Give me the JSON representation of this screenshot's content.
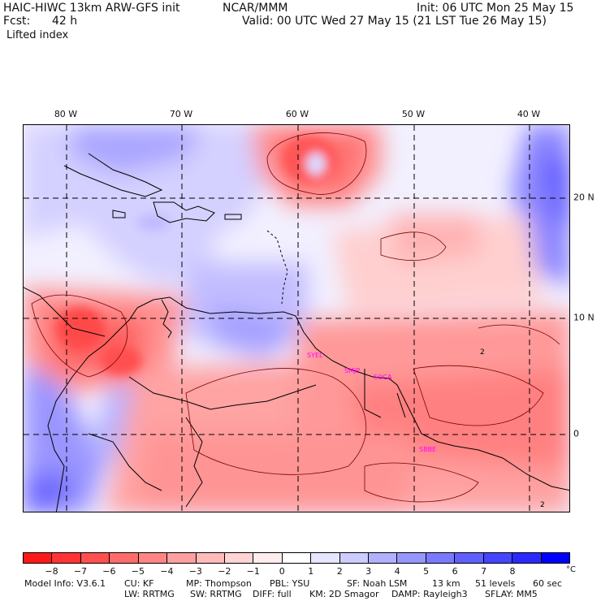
{
  "header": {
    "model": "HAIC-HIWC 13km ARW-GFS init",
    "org": "NCAR/MMM",
    "init": "Init: 06 UTC Mon 25 May 15",
    "fcst_label": "Fcst:",
    "fcst_value": "42 h",
    "valid": "Valid: 00 UTC Wed 27 May 15 (21 LST Tue 26 May 15)",
    "field": "Lifted index"
  },
  "map": {
    "lon_labels": [
      "80 W",
      "70 W",
      "60 W",
      "50 W",
      "40 W"
    ],
    "lat_labels": [
      "20 N",
      "10 N",
      "0"
    ],
    "contour_labels": [
      "2",
      "2"
    ],
    "stations": [
      "SYEL",
      "SMJP",
      "SOCA",
      "SBBE"
    ],
    "colors": {
      "strong_unstable": "#ff0000",
      "neutral": "#ffffff",
      "strong_stable": "#0000ff"
    }
  },
  "colorbar": {
    "colors": [
      "#ff1a1a",
      "#ff3333",
      "#ff4f4f",
      "#ff6b6b",
      "#ff8585",
      "#ff9f9f",
      "#ffbaba",
      "#ffd4d4",
      "#ffeded",
      "#ffffff",
      "#e6e6ff",
      "#ccccff",
      "#b0b0ff",
      "#9696ff",
      "#7a7aff",
      "#6060ff",
      "#4545ff",
      "#2a2aff",
      "#0000ff"
    ],
    "labels": [
      "−8",
      "−7",
      "−6",
      "−5",
      "−4",
      "−3",
      "−2",
      "−1",
      "0",
      "1",
      "2",
      "3",
      "4",
      "5",
      "6",
      "7",
      "8"
    ],
    "unit": "°C"
  },
  "footer": {
    "line1": [
      "Model Info: V3.6.1",
      "CU: KF",
      "MP: Thompson",
      "PBL: YSU",
      "SF: Noah LSM",
      "13 km",
      "51 levels",
      "60 sec"
    ],
    "line2": [
      "LW: RRTMG",
      "SW: RRTMG",
      "DIFF: full",
      "KM: 2D Smagor",
      "DAMP: Rayleigh3",
      "SFLAY: MM5"
    ]
  }
}
